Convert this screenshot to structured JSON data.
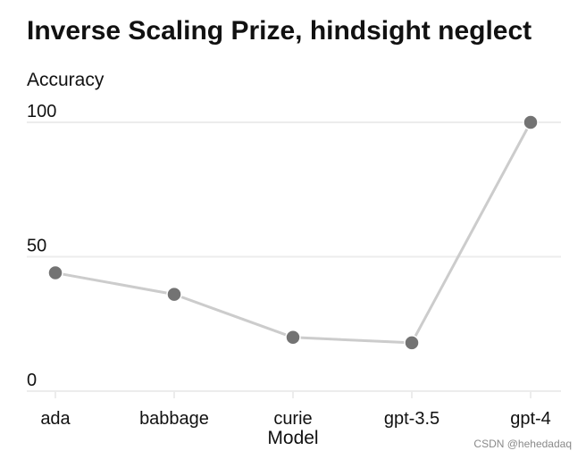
{
  "chart_data": {
    "type": "line",
    "title": "Inverse Scaling Prize, hindsight neglect",
    "xlabel": "Model",
    "ylabel": "Accuracy",
    "categories": [
      "ada",
      "babbage",
      "curie",
      "gpt-3.5",
      "gpt-4"
    ],
    "values": [
      44,
      36,
      20,
      18,
      100
    ],
    "yticks": [
      "0",
      "50",
      "100"
    ],
    "ylim": [
      0,
      100
    ],
    "grid": true,
    "legend": "none",
    "colors": {
      "line": "#cccccc",
      "marker": "#737373",
      "grid": "#ececec",
      "text": "#111111"
    }
  },
  "watermark": "CSDN @hehedadaq"
}
